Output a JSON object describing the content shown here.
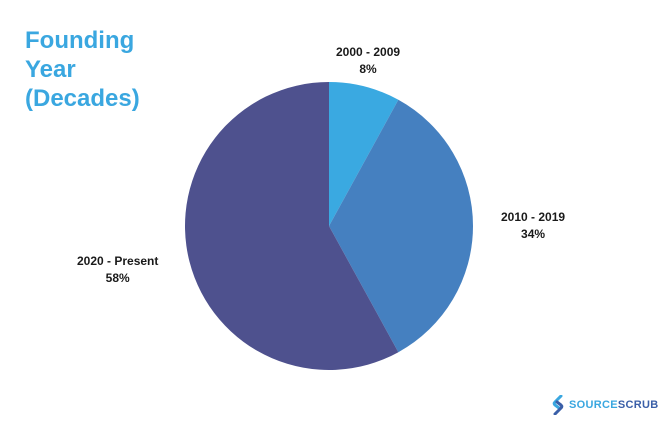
{
  "title": "Founding\nYear\n(Decades)",
  "colors": {
    "title": "#3aa7e0",
    "brand_source": "#3aa7e0",
    "brand_scrub": "#3a5fa8"
  },
  "chart_data": {
    "type": "pie",
    "title": "Founding Year (Decades)",
    "slices": [
      {
        "label": "2000 - 2009",
        "value": 8,
        "display": "8%",
        "color": "#3aa9e1"
      },
      {
        "label": "2010 - 2019",
        "value": 34,
        "display": "34%",
        "color": "#4580c0"
      },
      {
        "label": "2020 - Present",
        "value": 58,
        "display": "58%",
        "color": "#4e518e"
      }
    ]
  },
  "brand": {
    "part1": "SOURCE",
    "part2": "SCRUB",
    "logo_icon": "sourcescrub-s-logo-icon"
  }
}
